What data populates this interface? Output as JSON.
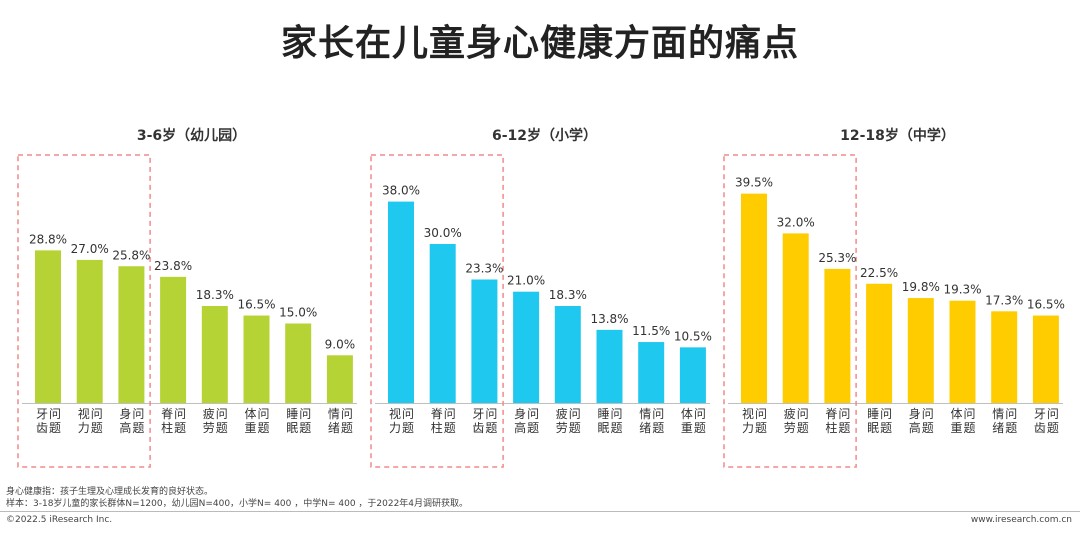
{
  "title": "家长在儿童身心健康方面的痛点",
  "notes": {
    "definition": "身心健康指：孩子生理及心理成长发育的良好状态。",
    "sample": "样本：3-18岁儿童的家长群体N=1200，幼儿园N=400，小学N= 400 ，中学N= 400 ，于2022年4月调研获取。"
  },
  "footer": {
    "copyright": "©2022.5 iResearch Inc.",
    "website": "www.iresearch.com.cn"
  },
  "chart_data": [
    {
      "type": "bar",
      "title": "3-6岁（幼儿园）",
      "color": "#b5d334",
      "unit": "%",
      "ylim": [
        0,
        45
      ],
      "categories": [
        "牙齿问题",
        "视力问题",
        "身高问题",
        "脊柱问题",
        "疲劳问题",
        "体重问题",
        "睡眠问题",
        "情绪问题"
      ],
      "values": [
        28.8,
        27.0,
        25.8,
        23.8,
        18.3,
        16.5,
        15.0,
        9.0
      ],
      "highlighted": 3
    },
    {
      "type": "bar",
      "title": "6-12岁（小学）",
      "color": "#1fc8ef",
      "unit": "%",
      "ylim": [
        0,
        45
      ],
      "categories": [
        "视力问题",
        "脊柱问题",
        "牙齿问题",
        "身高问题",
        "疲劳问题",
        "睡眠问题",
        "情绪问题",
        "体重问题"
      ],
      "values": [
        38.0,
        30.0,
        23.3,
        21.0,
        18.3,
        13.8,
        11.5,
        10.5
      ],
      "highlighted": 3
    },
    {
      "type": "bar",
      "title": "12-18岁（中学）",
      "color": "#ffcc00",
      "unit": "%",
      "ylim": [
        0,
        45
      ],
      "categories": [
        "视力问题",
        "疲劳问题",
        "脊柱问题",
        "睡眠问题",
        "身高问题",
        "体重问题",
        "情绪问题",
        "牙齿问题"
      ],
      "values": [
        39.5,
        32.0,
        25.3,
        22.5,
        19.8,
        19.3,
        17.3,
        16.5
      ],
      "highlighted": 3
    }
  ]
}
